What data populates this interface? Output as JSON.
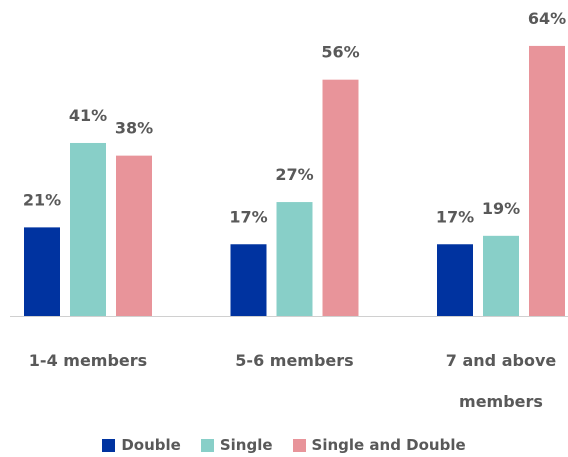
{
  "chart_data": {
    "type": "bar",
    "categories": [
      "1-4 members",
      "5-6 members",
      "7 and above members"
    ],
    "series": [
      {
        "name": "Double",
        "color": "#0033a0",
        "values": [
          21,
          17,
          17
        ],
        "value_labels": [
          "21%",
          "17%",
          "17%"
        ]
      },
      {
        "name": "Single",
        "color": "#88cfc8",
        "values": [
          41,
          27,
          19
        ],
        "value_labels": [
          "41%",
          "27%",
          "19%"
        ]
      },
      {
        "name": "Single and Double",
        "color": "#e8949a",
        "values": [
          38,
          56,
          64
        ],
        "value_labels": [
          "38%",
          "56%",
          "64%"
        ]
      }
    ],
    "ylim": [
      0,
      70
    ],
    "legend": "bottom"
  }
}
